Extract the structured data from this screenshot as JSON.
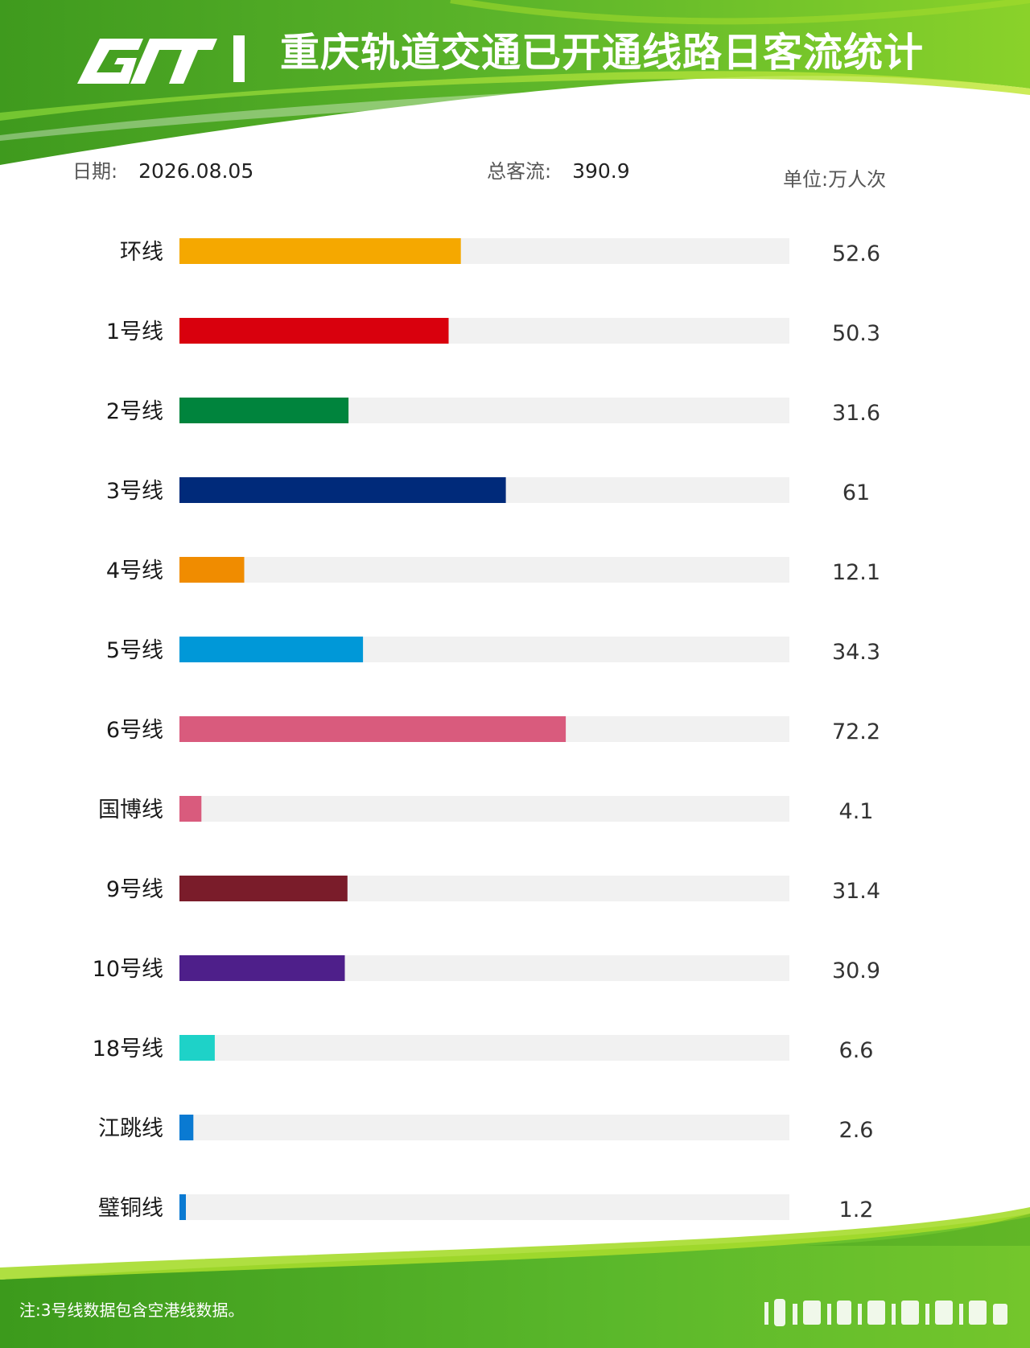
{
  "header": {
    "logo_text": "CRT",
    "title": "重庆轨道交通已开通线路日客流统计"
  },
  "meta": {
    "date_label": "日期:",
    "date_value": "2026.08.05",
    "total_label": "总客流:",
    "total_value": "390.9",
    "unit_label": "单位:万人次"
  },
  "chart_data": {
    "type": "bar",
    "orientation": "horizontal",
    "title": "重庆轨道交通已开通线路日客流统计",
    "unit": "万人次",
    "xlim": [
      0,
      114
    ],
    "grid": false,
    "legend": "none",
    "categories": [
      "环线",
      "1号线",
      "2号线",
      "3号线",
      "4号线",
      "5号线",
      "6号线",
      "国博线",
      "9号线",
      "10号线",
      "18号线",
      "江跳线",
      "璧铜线"
    ],
    "values": [
      52.6,
      50.3,
      31.6,
      61,
      12.1,
      34.3,
      72.2,
      4.1,
      31.4,
      30.9,
      6.6,
      2.6,
      1.2
    ],
    "value_labels": [
      "52.6",
      "50.3",
      "31.6",
      "61",
      "12.1",
      "34.3",
      "72.2",
      "4.1",
      "31.4",
      "30.9",
      "6.6",
      "2.6",
      "1.2"
    ],
    "colors": [
      "#f5a800",
      "#d9000d",
      "#00843d",
      "#002a7a",
      "#f08c00",
      "#0098d8",
      "#d95b7d",
      "#d95b7d",
      "#7a1c2a",
      "#4e1f8a",
      "#1ed2c8",
      "#0a7ad2",
      "#0a7ad2"
    ],
    "track_color": "#f1f1f1"
  },
  "footnote": "注:3号线数据包含空港线数据。",
  "theme": {
    "header_green": "#4fae1c",
    "header_light": "#a6dc2c",
    "footer_green": "#52b41e",
    "label_color": "#1a1a1a",
    "value_color": "#333333"
  }
}
